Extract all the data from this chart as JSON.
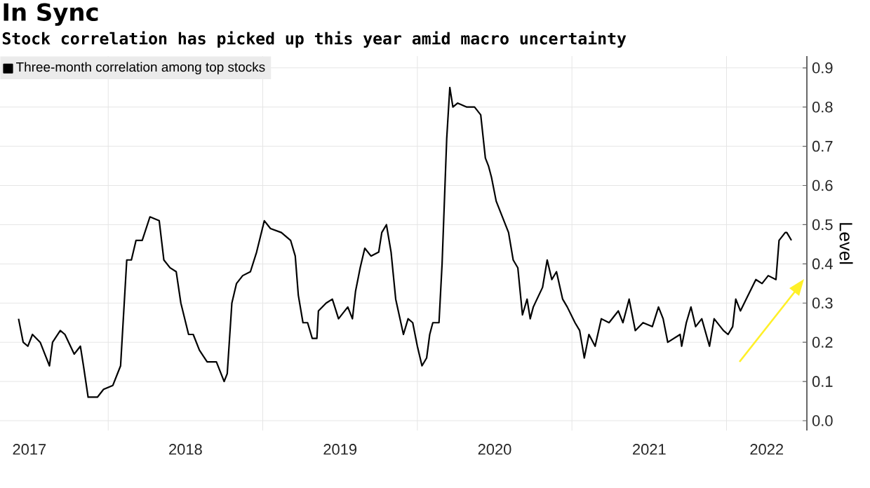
{
  "chart_data": {
    "type": "line",
    "title": "In Sync",
    "subtitle": "Stock correlation has picked up this year amid macro uncertainty",
    "ylabel": "Level",
    "series": [
      {
        "name": "Three-month correlation among top stocks",
        "color": "#000000",
        "x": [
          2017.42,
          2017.45,
          2017.48,
          2017.51,
          2017.56,
          2017.62,
          2017.64,
          2017.69,
          2017.72,
          2017.78,
          2017.82,
          2017.84,
          2017.87,
          2017.93,
          2017.97,
          2018.03,
          2018.08,
          2018.12,
          2018.15,
          2018.18,
          2018.22,
          2018.27,
          2018.33,
          2018.36,
          2018.4,
          2018.44,
          2018.47,
          2018.52,
          2018.55,
          2018.59,
          2018.64,
          2018.7,
          2018.75,
          2018.77,
          2018.8,
          2018.83,
          2018.87,
          2018.92,
          2018.96,
          2019.01,
          2019.05,
          2019.12,
          2019.18,
          2019.21,
          2019.23,
          2019.26,
          2019.29,
          2019.32,
          2019.35,
          2019.36,
          2019.41,
          2019.45,
          2019.49,
          2019.55,
          2019.58,
          2019.6,
          2019.63,
          2019.66,
          2019.7,
          2019.75,
          2019.77,
          2019.8,
          2019.83,
          2019.86,
          2019.91,
          2019.94,
          2019.97,
          2020.0,
          2020.03,
          2020.06,
          2020.08,
          2020.1,
          2020.14,
          2020.16,
          2020.19,
          2020.21,
          2020.23,
          2020.26,
          2020.32,
          2020.37,
          2020.41,
          2020.44,
          2020.46,
          2020.48,
          2020.51,
          2020.56,
          2020.59,
          2020.62,
          2020.65,
          2020.68,
          2020.71,
          2020.73,
          2020.75,
          2020.81,
          2020.84,
          2020.87,
          2020.9,
          2020.94,
          2020.97,
          2021.02,
          2021.05,
          2021.08,
          2021.11,
          2021.15,
          2021.19,
          2021.24,
          2021.3,
          2021.33,
          2021.37,
          2021.41,
          2021.46,
          2021.52,
          2021.56,
          2021.59,
          2021.62,
          2021.7,
          2021.71,
          2021.74,
          2021.77,
          2021.8,
          2021.84,
          2021.89,
          2021.92,
          2021.98,
          2022.01,
          2022.04,
          2022.06,
          2022.09,
          2022.14,
          2022.19,
          2022.23,
          2022.27,
          2022.32,
          2022.34,
          2022.38,
          2022.39,
          2022.42
        ],
        "values": [
          0.26,
          0.2,
          0.19,
          0.22,
          0.2,
          0.14,
          0.2,
          0.23,
          0.22,
          0.17,
          0.19,
          0.14,
          0.06,
          0.06,
          0.08,
          0.09,
          0.14,
          0.41,
          0.41,
          0.46,
          0.46,
          0.52,
          0.51,
          0.41,
          0.39,
          0.38,
          0.3,
          0.22,
          0.22,
          0.18,
          0.15,
          0.15,
          0.1,
          0.12,
          0.3,
          0.35,
          0.37,
          0.38,
          0.43,
          0.51,
          0.49,
          0.48,
          0.46,
          0.42,
          0.32,
          0.25,
          0.25,
          0.21,
          0.21,
          0.28,
          0.3,
          0.31,
          0.26,
          0.29,
          0.26,
          0.33,
          0.39,
          0.44,
          0.42,
          0.43,
          0.48,
          0.5,
          0.43,
          0.31,
          0.22,
          0.26,
          0.25,
          0.19,
          0.14,
          0.16,
          0.22,
          0.25,
          0.25,
          0.4,
          0.72,
          0.85,
          0.8,
          0.81,
          0.8,
          0.8,
          0.78,
          0.67,
          0.65,
          0.62,
          0.56,
          0.51,
          0.48,
          0.41,
          0.39,
          0.27,
          0.31,
          0.26,
          0.29,
          0.34,
          0.41,
          0.36,
          0.38,
          0.31,
          0.29,
          0.25,
          0.23,
          0.16,
          0.22,
          0.19,
          0.26,
          0.25,
          0.28,
          0.25,
          0.31,
          0.23,
          0.25,
          0.24,
          0.29,
          0.26,
          0.2,
          0.22,
          0.19,
          0.25,
          0.29,
          0.24,
          0.26,
          0.19,
          0.26,
          0.23,
          0.22,
          0.24,
          0.31,
          0.28,
          0.32,
          0.36,
          0.35,
          0.37,
          0.36,
          0.46,
          0.48,
          0.48,
          0.46
        ]
      }
    ],
    "xlim": [
      2017.3,
      2022.52
    ],
    "ylim": [
      -0.025,
      0.93
    ],
    "xticks": [
      {
        "value": 2017.49,
        "label": "2017"
      },
      {
        "value": 2018,
        "label": null
      },
      {
        "value": 2018.5,
        "label": "2018"
      },
      {
        "value": 2019,
        "label": null
      },
      {
        "value": 2019.5,
        "label": "2019"
      },
      {
        "value": 2020,
        "label": null
      },
      {
        "value": 2020.5,
        "label": "2020"
      },
      {
        "value": 2021,
        "label": null
      },
      {
        "value": 2021.5,
        "label": "2021"
      },
      {
        "value": 2022,
        "label": null
      },
      {
        "value": 2022.26,
        "label": "2022"
      }
    ],
    "yticks": [
      {
        "value": 0,
        "label": "0.0"
      },
      0.1,
      0.2,
      0.3,
      0.4,
      0.5,
      0.6,
      0.7,
      0.8,
      0.9
    ],
    "grid": true,
    "legend": "top left",
    "marker": "none",
    "line_style": "solid"
  }
}
